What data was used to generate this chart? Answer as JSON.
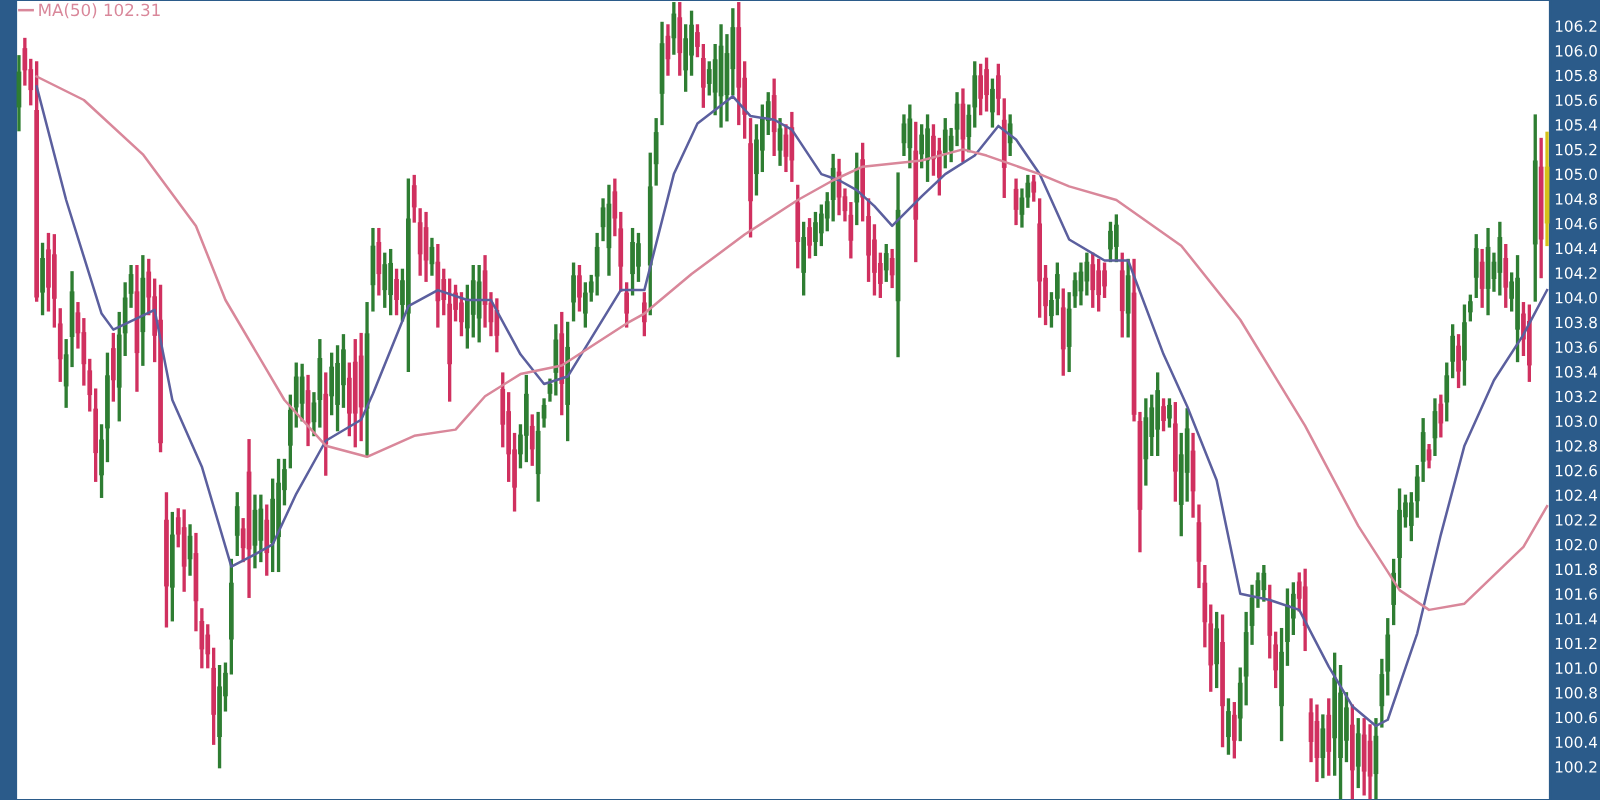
{
  "chart_data": {
    "type": "candlestick",
    "categories": [
      null,
      null,
      null,
      null,
      null,
      null,
      null,
      null,
      null,
      null,
      null,
      null,
      null,
      null,
      null,
      null,
      null,
      null,
      null,
      null,
      null,
      null,
      null,
      null,
      null,
      null,
      null,
      null,
      null,
      null,
      null,
      null,
      null,
      null,
      null,
      null,
      null,
      null,
      null,
      null,
      null,
      null,
      null,
      null,
      null,
      null,
      null,
      null,
      null,
      null,
      null,
      null,
      null,
      null,
      null,
      null,
      null,
      null,
      null,
      null,
      null,
      null,
      null,
      null,
      null,
      null,
      null,
      null,
      null,
      null,
      null,
      null,
      null,
      null,
      null,
      null,
      null,
      null,
      null,
      null,
      null,
      null,
      null,
      null,
      null,
      null,
      null,
      null,
      null,
      null,
      null,
      null,
      null,
      null,
      null,
      null,
      null,
      null,
      null,
      null,
      null,
      null,
      null,
      null,
      null,
      null,
      null,
      null,
      null,
      null,
      null,
      null,
      null,
      null,
      null,
      null,
      null,
      null,
      null,
      null,
      null,
      null,
      null,
      null,
      null,
      null,
      null,
      null,
      null,
      null,
      null,
      null,
      null,
      null,
      null,
      null,
      null,
      null,
      null,
      null,
      null,
      null,
      null,
      null,
      null,
      null,
      null,
      null,
      null,
      null,
      null,
      null,
      null,
      null,
      null,
      null,
      null,
      null,
      null,
      null,
      null,
      null,
      null,
      null,
      null,
      null,
      null,
      null,
      null,
      null,
      null,
      null,
      null,
      null,
      null,
      null,
      null,
      null,
      null,
      null,
      null,
      null,
      null,
      null,
      null,
      null,
      null,
      null,
      null,
      null,
      null,
      null,
      null,
      null,
      null,
      null,
      null,
      null,
      null,
      null,
      null,
      null,
      null,
      null,
      null,
      null,
      null,
      null,
      null,
      null,
      null,
      null,
      null,
      null,
      null,
      null,
      null,
      null,
      null,
      null,
      null,
      null,
      null,
      null,
      null,
      null,
      null,
      null,
      null,
      null,
      null,
      null,
      null,
      null,
      null,
      null,
      null,
      null,
      null,
      null,
      null,
      null,
      null,
      null,
      null,
      null,
      null,
      null,
      null,
      null,
      null,
      null,
      null,
      null,
      null,
      null,
      null,
      null,
      null,
      null
    ],
    "ohlc": [
      [
        105.54,
        105.95,
        105.36,
        105.83
      ],
      [
        106.02,
        106.09,
        105.73,
        105.84
      ],
      [
        105.85,
        105.92,
        105.57,
        105.68
      ],
      [
        105.52,
        105.9,
        103.98,
        104.0
      ],
      [
        104.04,
        104.43,
        103.87,
        104.32
      ],
      [
        104.39,
        104.51,
        103.9,
        104.08
      ],
      [
        104.35,
        104.5,
        103.77,
        103.99
      ],
      [
        103.79,
        103.9,
        103.33,
        103.5
      ],
      [
        103.28,
        103.65,
        103.12,
        103.54
      ],
      [
        103.68,
        104.2,
        103.45,
        104.05
      ],
      [
        103.88,
        103.95,
        103.6,
        103.71
      ],
      [
        103.72,
        103.82,
        103.3,
        103.46
      ],
      [
        103.41,
        103.49,
        103.09,
        103.21
      ],
      [
        103.1,
        103.25,
        102.52,
        102.74
      ],
      [
        102.56,
        102.96,
        102.39,
        102.85
      ],
      [
        102.94,
        103.54,
        102.68,
        103.37
      ],
      [
        103.59,
        103.7,
        103.17,
        103.33
      ],
      [
        103.27,
        103.87,
        103.01,
        103.7
      ],
      [
        103.71,
        104.11,
        103.54,
        104.0
      ],
      [
        104.03,
        104.25,
        103.93,
        104.19
      ],
      [
        104.05,
        104.25,
        103.25,
        103.55
      ],
      [
        103.72,
        104.33,
        103.46,
        104.16
      ],
      [
        104.21,
        104.3,
        103.87,
        104.0
      ],
      [
        104.01,
        104.14,
        103.49,
        103.69
      ],
      [
        103.82,
        104.09,
        102.76,
        102.82
      ],
      [
        102.2,
        102.41,
        101.34,
        101.66
      ],
      [
        101.65,
        102.25,
        101.39,
        102.08
      ],
      [
        102.22,
        102.28,
        101.99,
        102.08
      ],
      [
        102.14,
        102.27,
        101.63,
        101.82
      ],
      [
        101.88,
        102.15,
        101.76,
        102.07
      ],
      [
        101.93,
        102.08,
        101.31,
        101.54
      ],
      [
        101.38,
        101.47,
        101.01,
        101.15
      ],
      [
        101.27,
        101.34,
        101.01,
        101.11
      ],
      [
        101.0,
        101.15,
        100.39,
        100.62
      ],
      [
        100.44,
        101.01,
        100.2,
        100.85
      ],
      [
        100.77,
        101.03,
        100.66,
        100.96
      ],
      [
        101.23,
        101.87,
        100.96,
        101.69
      ],
      [
        102.07,
        102.41,
        101.92,
        102.31
      ],
      [
        102.13,
        102.2,
        101.87,
        101.97
      ],
      [
        102.59,
        102.84,
        101.58,
        101.96
      ],
      [
        101.99,
        102.39,
        101.82,
        102.28
      ],
      [
        102.03,
        102.39,
        101.87,
        102.29
      ],
      [
        102.2,
        102.31,
        101.76,
        101.93
      ],
      [
        102.01,
        102.52,
        101.79,
        102.37
      ],
      [
        102.06,
        102.68,
        101.79,
        102.5
      ],
      [
        102.44,
        102.68,
        102.33,
        102.61
      ],
      [
        102.8,
        103.2,
        102.63,
        103.09
      ],
      [
        103.11,
        103.46,
        102.96,
        103.36
      ],
      [
        103.14,
        103.45,
        103.01,
        103.36
      ],
      [
        103.25,
        103.36,
        102.81,
        102.98
      ],
      [
        102.99,
        103.22,
        102.89,
        103.15
      ],
      [
        103.17,
        103.65,
        102.96,
        103.51
      ],
      [
        103.22,
        103.38,
        102.57,
        102.81
      ],
      [
        103.2,
        103.54,
        103.06,
        103.44
      ],
      [
        103.13,
        103.6,
        102.93,
        103.47
      ],
      [
        103.29,
        103.69,
        103.12,
        103.58
      ],
      [
        103.35,
        103.46,
        102.89,
        103.06
      ],
      [
        103.48,
        103.65,
        102.8,
        103.06
      ],
      [
        103.53,
        103.7,
        102.85,
        103.11
      ],
      [
        103.1,
        103.95,
        102.73,
        103.71
      ],
      [
        104.1,
        104.55,
        103.9,
        104.42
      ],
      [
        104.45,
        104.55,
        104.03,
        104.19
      ],
      [
        104.06,
        104.35,
        103.93,
        104.27
      ],
      [
        104.02,
        104.38,
        103.87,
        104.28
      ],
      [
        104.15,
        104.22,
        103.87,
        103.98
      ],
      [
        103.94,
        104.22,
        103.82,
        104.14
      ],
      [
        103.87,
        104.95,
        103.41,
        104.64
      ],
      [
        104.91,
        104.98,
        104.62,
        104.73
      ],
      [
        104.61,
        104.71,
        104.19,
        104.35
      ],
      [
        104.57,
        104.68,
        104.14,
        104.3
      ],
      [
        104.27,
        104.47,
        104.19,
        104.41
      ],
      [
        104.29,
        104.42,
        103.77,
        103.97
      ],
      [
        104.15,
        104.22,
        103.87,
        103.98
      ],
      [
        103.95,
        104.14,
        103.17,
        103.46
      ],
      [
        104.04,
        104.09,
        103.82,
        103.9
      ],
      [
        103.96,
        104.03,
        103.7,
        103.8
      ],
      [
        103.75,
        104.09,
        103.6,
        103.99
      ],
      [
        103.86,
        104.25,
        103.69,
        104.14
      ],
      [
        103.83,
        104.25,
        103.65,
        104.13
      ],
      [
        104.22,
        104.33,
        103.77,
        103.94
      ],
      [
        103.96,
        104.03,
        103.7,
        103.8
      ],
      [
        103.9,
        103.98,
        103.57,
        103.69
      ],
      [
        103.26,
        103.38,
        102.8,
        102.97
      ],
      [
        103.08,
        103.22,
        102.52,
        102.73
      ],
      [
        102.77,
        102.89,
        102.28,
        102.46
      ],
      [
        102.73,
        102.96,
        102.63,
        102.89
      ],
      [
        102.88,
        103.36,
        102.68,
        103.22
      ],
      [
        102.96,
        103.04,
        102.65,
        102.77
      ],
      [
        102.57,
        103.06,
        102.36,
        102.92
      ],
      [
        103.02,
        103.17,
        102.96,
        103.13
      ],
      [
        103.22,
        103.33,
        103.17,
        103.3
      ],
      [
        103.39,
        103.77,
        103.22,
        103.66
      ],
      [
        103.71,
        103.87,
        103.06,
        103.3
      ],
      [
        103.13,
        103.79,
        102.85,
        103.6
      ],
      [
        103.96,
        104.27,
        103.82,
        104.18
      ],
      [
        104.18,
        104.25,
        103.9,
        104.0
      ],
      [
        103.87,
        104.11,
        103.77,
        104.04
      ],
      [
        104.04,
        104.17,
        103.98,
        104.13
      ],
      [
        104.17,
        104.51,
        104.03,
        104.41
      ],
      [
        104.57,
        104.79,
        104.47,
        104.73
      ],
      [
        104.4,
        104.9,
        104.19,
        104.76
      ],
      [
        104.86,
        104.95,
        104.51,
        104.64
      ],
      [
        104.56,
        104.68,
        104.06,
        104.25
      ],
      [
        104.04,
        104.11,
        103.77,
        103.87
      ],
      [
        104.19,
        104.55,
        104.03,
        104.45
      ],
      [
        104.25,
        104.51,
        104.14,
        104.44
      ],
      [
        103.96,
        104.03,
        103.7,
        103.8
      ],
      [
        104.26,
        105.16,
        103.87,
        104.9
      ],
      [
        105.08,
        105.44,
        104.92,
        105.34
      ],
      [
        105.65,
        106.22,
        105.41,
        106.06
      ],
      [
        106.12,
        106.2,
        105.81,
        105.93
      ],
      [
        106.1,
        106.38,
        105.98,
        106.3
      ],
      [
        106.27,
        106.38,
        105.81,
        105.98
      ],
      [
        105.84,
        106.2,
        105.68,
        106.1
      ],
      [
        105.96,
        106.31,
        105.81,
        106.21
      ],
      [
        106.15,
        106.2,
        105.96,
        106.03
      ],
      [
        105.94,
        106.04,
        105.55,
        105.7
      ],
      [
        105.73,
        105.9,
        105.65,
        105.85
      ],
      [
        105.66,
        106.04,
        105.49,
        105.93
      ],
      [
        105.63,
        106.2,
        105.39,
        106.04
      ],
      [
        105.64,
        106.12,
        105.44,
        105.98
      ],
      [
        105.85,
        106.33,
        105.65,
        106.19
      ],
      [
        106.19,
        106.38,
        105.41,
        105.7
      ],
      [
        105.78,
        105.9,
        105.3,
        105.48
      ],
      [
        105.25,
        105.44,
        104.5,
        104.78
      ],
      [
        105.0,
        105.39,
        104.84,
        105.28
      ],
      [
        105.19,
        105.55,
        105.03,
        105.45
      ],
      [
        105.43,
        105.65,
        105.33,
        105.59
      ],
      [
        105.64,
        105.76,
        105.16,
        105.34
      ],
      [
        105.19,
        105.44,
        105.08,
        105.37
      ],
      [
        105.32,
        105.39,
        105.03,
        105.14
      ],
      [
        105.38,
        105.49,
        104.95,
        105.11
      ],
      [
        104.77,
        104.9,
        104.25,
        104.45
      ],
      [
        104.2,
        104.6,
        104.03,
        104.49
      ],
      [
        104.57,
        104.63,
        104.33,
        104.42
      ],
      [
        104.45,
        104.68,
        104.35,
        104.61
      ],
      [
        104.52,
        104.74,
        104.43,
        104.68
      ],
      [
        104.64,
        104.84,
        104.55,
        104.78
      ],
      [
        104.79,
        105.15,
        104.63,
        105.05
      ],
      [
        105.02,
        105.11,
        104.68,
        104.81
      ],
      [
        104.82,
        104.87,
        104.63,
        104.7
      ],
      [
        104.67,
        104.76,
        104.33,
        104.46
      ],
      [
        104.77,
        105.16,
        104.6,
        105.05
      ],
      [
        105.12,
        105.24,
        104.63,
        104.81
      ],
      [
        104.66,
        104.79,
        104.14,
        104.34
      ],
      [
        104.47,
        104.58,
        104.03,
        104.2
      ],
      [
        104.28,
        104.35,
        104.01,
        104.11
      ],
      [
        104.22,
        104.42,
        104.14,
        104.36
      ],
      [
        104.32,
        104.38,
        104.09,
        104.18
      ],
      [
        103.97,
        105.0,
        103.53,
        104.71
      ],
      [
        105.25,
        105.47,
        105.16,
        105.41
      ],
      [
        105.21,
        105.55,
        105.06,
        105.45
      ],
      [
        105.19,
        105.41,
        104.3,
        104.63
      ],
      [
        105.16,
        105.39,
        105.06,
        105.32
      ],
      [
        105.11,
        105.47,
        104.95,
        105.37
      ],
      [
        105.31,
        105.39,
        105.0,
        105.12
      ],
      [
        105.19,
        105.28,
        104.84,
        104.97
      ],
      [
        105.17,
        105.44,
        105.06,
        105.36
      ],
      [
        105.19,
        105.36,
        105.11,
        105.31
      ],
      [
        105.36,
        105.65,
        105.24,
        105.57
      ],
      [
        105.57,
        105.68,
        105.11,
        105.28
      ],
      [
        105.3,
        105.55,
        105.19,
        105.48
      ],
      [
        105.54,
        105.9,
        105.39,
        105.8
      ],
      [
        105.8,
        105.88,
        105.49,
        105.61
      ],
      [
        105.85,
        105.93,
        105.52,
        105.64
      ],
      [
        105.5,
        105.76,
        105.39,
        105.69
      ],
      [
        105.8,
        105.88,
        105.49,
        105.61
      ],
      [
        105.44,
        105.6,
        104.82,
        105.05
      ],
      [
        105.25,
        105.47,
        105.16,
        105.41
      ],
      [
        104.88,
        104.95,
        104.6,
        104.71
      ],
      [
        104.67,
        104.87,
        104.58,
        104.81
      ],
      [
        104.81,
        104.98,
        104.74,
        104.93
      ],
      [
        104.94,
        104.98,
        104.79,
        104.85
      ],
      [
        104.6,
        104.79,
        103.85,
        104.13
      ],
      [
        104.16,
        104.25,
        103.79,
        103.93
      ],
      [
        103.85,
        104.03,
        103.77,
        103.98
      ],
      [
        103.99,
        104.27,
        103.87,
        104.19
      ],
      [
        103.92,
        104.06,
        103.38,
        103.58
      ],
      [
        103.6,
        104.03,
        103.41,
        103.91
      ],
      [
        104.01,
        104.19,
        103.93,
        104.14
      ],
      [
        104.05,
        104.27,
        103.95,
        104.21
      ],
      [
        104.13,
        104.35,
        104.03,
        104.29
      ],
      [
        104.27,
        104.35,
        103.93,
        104.06
      ],
      [
        104.22,
        104.3,
        103.9,
        104.02
      ],
      [
        104.22,
        104.27,
        104.01,
        104.09
      ],
      [
        104.39,
        104.6,
        104.3,
        104.54
      ],
      [
        104.41,
        104.66,
        104.3,
        104.59
      ],
      [
        104.22,
        104.35,
        103.69,
        103.89
      ],
      [
        103.87,
        104.3,
        103.69,
        104.18
      ],
      [
        104.04,
        104.3,
        103.01,
        103.05
      ],
      [
        103.0,
        103.06,
        101.95,
        102.28
      ],
      [
        102.69,
        103.17,
        102.49,
        103.03
      ],
      [
        102.87,
        103.2,
        102.73,
        103.11
      ],
      [
        102.93,
        103.38,
        102.73,
        103.25
      ],
      [
        103.12,
        103.17,
        102.93,
        103.0
      ],
      [
        103.02,
        103.17,
        102.96,
        103.13
      ],
      [
        102.98,
        103.14,
        102.36,
        102.59
      ],
      [
        102.32,
        102.89,
        102.08,
        102.73
      ],
      [
        102.58,
        103.09,
        102.36,
        102.94
      ],
      [
        102.76,
        102.89,
        102.23,
        102.43
      ],
      [
        102.18,
        102.31,
        101.66,
        101.86
      ],
      [
        101.69,
        101.82,
        101.18,
        101.37
      ],
      [
        101.36,
        101.5,
        100.82,
        101.02
      ],
      [
        101.03,
        101.44,
        100.85,
        101.32
      ],
      [
        101.21,
        101.42,
        100.37,
        100.69
      ],
      [
        100.44,
        100.74,
        100.31,
        100.65
      ],
      [
        100.62,
        100.71,
        100.28,
        100.41
      ],
      [
        100.59,
        100.99,
        100.42,
        100.88
      ],
      [
        100.93,
        101.44,
        100.71,
        101.29
      ],
      [
        101.34,
        101.66,
        101.2,
        101.57
      ],
      [
        101.58,
        101.76,
        101.5,
        101.71
      ],
      [
        101.63,
        101.82,
        101.55,
        101.77
      ],
      [
        101.55,
        101.66,
        101.09,
        101.26
      ],
      [
        101.19,
        101.28,
        100.85,
        100.98
      ],
      [
        100.69,
        101.31,
        100.42,
        101.13
      ],
      [
        101.21,
        101.63,
        101.03,
        101.51
      ],
      [
        101.4,
        101.68,
        101.28,
        101.6
      ],
      [
        101.7,
        101.76,
        101.47,
        101.56
      ],
      [
        101.66,
        101.79,
        101.15,
        101.34
      ],
      [
        100.64,
        100.74,
        100.25,
        100.4
      ],
      [
        100.57,
        100.69,
        100.09,
        100.27
      ],
      [
        100.27,
        100.61,
        100.12,
        100.51
      ],
      [
        100.62,
        100.74,
        100.14,
        100.32
      ],
      [
        100.43,
        101.11,
        100.14,
        100.92
      ],
      [
        100.27,
        101.01,
        99.95,
        100.8
      ],
      [
        100.41,
        100.79,
        100.25,
        100.68
      ],
      [
        100.54,
        100.69,
        99.95,
        100.17
      ],
      [
        100.2,
        100.58,
        100.04,
        100.47
      ],
      [
        100.46,
        100.58,
        99.98,
        100.16
      ],
      [
        100.41,
        100.53,
        99.95,
        100.12
      ],
      [
        100.14,
        100.58,
        99.95,
        100.45
      ],
      [
        100.69,
        101.06,
        100.53,
        100.95
      ],
      [
        100.97,
        101.39,
        100.79,
        101.27
      ],
      [
        101.51,
        101.87,
        101.36,
        101.77
      ],
      [
        101.89,
        102.44,
        101.66,
        102.28
      ],
      [
        102.22,
        102.39,
        102.15,
        102.34
      ],
      [
        102.15,
        102.41,
        102.04,
        102.34
      ],
      [
        102.35,
        102.63,
        102.23,
        102.55
      ],
      [
        102.67,
        103.01,
        102.52,
        102.91
      ],
      [
        102.77,
        102.8,
        102.63,
        102.68
      ],
      [
        102.86,
        103.17,
        102.73,
        103.08
      ],
      [
        103.14,
        103.2,
        102.88,
        102.98
      ],
      [
        103.15,
        103.46,
        103.01,
        103.37
      ],
      [
        103.48,
        103.77,
        103.36,
        103.69
      ],
      [
        103.61,
        103.69,
        103.28,
        103.4
      ],
      [
        103.49,
        103.93,
        103.3,
        103.8
      ],
      [
        103.88,
        104.01,
        103.82,
        103.97
      ],
      [
        104.16,
        104.5,
        104.01,
        104.4
      ],
      [
        104.29,
        104.38,
        103.93,
        104.07
      ],
      [
        104.07,
        104.55,
        103.87,
        104.41
      ],
      [
        104.15,
        104.35,
        104.06,
        104.29
      ],
      [
        104.2,
        104.6,
        104.03,
        104.49
      ],
      [
        104.32,
        104.42,
        103.93,
        104.08
      ],
      [
        103.99,
        104.19,
        103.9,
        104.13
      ],
      [
        103.74,
        104.33,
        103.49,
        104.16
      ],
      [
        103.87,
        103.95,
        103.54,
        103.66
      ],
      [
        103.81,
        103.93,
        103.33,
        103.45
      ],
      [
        104.43,
        105.47,
        103.98,
        105.11
      ],
      [
        105.06,
        105.28,
        104.17,
        104.47
      ],
      [
        104.6,
        105.33,
        104.43,
        105.06
      ]
    ],
    "colors": [
      "#2e7d32",
      "#d0305f",
      "#d0305f",
      "#d0305f",
      "#2e7d32",
      "#d0305f",
      "#d0305f",
      "#d0305f",
      "#2e7d32",
      "#2e7d32",
      "#d0305f",
      "#d0305f",
      "#d0305f",
      "#d0305f",
      "#2e7d32",
      "#2e7d32",
      "#d0305f",
      "#2e7d32",
      "#2e7d32",
      "#2e7d32",
      "#d0305f",
      "#2e7d32",
      "#d0305f",
      "#d0305f",
      "#d0305f",
      "#d0305f",
      "#2e7d32",
      "#d0305f",
      "#d0305f",
      "#2e7d32",
      "#d0305f",
      "#d0305f",
      "#d0305f",
      "#d0305f",
      "#2e7d32",
      "#2e7d32",
      "#2e7d32",
      "#2e7d32",
      "#d0305f",
      "#d0305f",
      "#2e7d32",
      "#2e7d32",
      "#d0305f",
      "#2e7d32",
      "#2e7d32",
      "#2e7d32",
      "#2e7d32",
      "#2e7d32",
      "#2e7d32",
      "#d0305f",
      "#2e7d32",
      "#2e7d32",
      "#d0305f",
      "#2e7d32",
      "#2e7d32",
      "#2e7d32",
      "#d0305f",
      "#d0305f",
      "#d0305f",
      "#2e7d32",
      "#2e7d32",
      "#d0305f",
      "#2e7d32",
      "#2e7d32",
      "#d0305f",
      "#2e7d32",
      "#2e7d32",
      "#d0305f",
      "#d0305f",
      "#d0305f",
      "#2e7d32",
      "#d0305f",
      "#d0305f",
      "#d0305f",
      "#d0305f",
      "#d0305f",
      "#2e7d32",
      "#2e7d32",
      "#2e7d32",
      "#d0305f",
      "#d0305f",
      "#d0305f",
      "#d0305f",
      "#d0305f",
      "#d0305f",
      "#2e7d32",
      "#2e7d32",
      "#d0305f",
      "#2e7d32",
      "#2e7d32",
      "#2e7d32",
      "#2e7d32",
      "#d0305f",
      "#2e7d32",
      "#2e7d32",
      "#d0305f",
      "#2e7d32",
      "#2e7d32",
      "#2e7d32",
      "#2e7d32",
      "#2e7d32",
      "#d0305f",
      "#d0305f",
      "#d0305f",
      "#2e7d32",
      "#2e7d32",
      "#d0305f",
      "#2e7d32",
      "#2e7d32",
      "#2e7d32",
      "#d0305f",
      "#2e7d32",
      "#d0305f",
      "#2e7d32",
      "#2e7d32",
      "#d0305f",
      "#d0305f",
      "#2e7d32",
      "#2e7d32",
      "#2e7d32",
      "#2e7d32",
      "#2e7d32",
      "#d0305f",
      "#d0305f",
      "#d0305f",
      "#2e7d32",
      "#2e7d32",
      "#2e7d32",
      "#d0305f",
      "#2e7d32",
      "#d0305f",
      "#d0305f",
      "#d0305f",
      "#2e7d32",
      "#d0305f",
      "#2e7d32",
      "#2e7d32",
      "#2e7d32",
      "#2e7d32",
      "#d0305f",
      "#d0305f",
      "#d0305f",
      "#2e7d32",
      "#d0305f",
      "#d0305f",
      "#d0305f",
      "#d0305f",
      "#2e7d32",
      "#d0305f",
      "#2e7d32",
      "#2e7d32",
      "#2e7d32",
      "#d0305f",
      "#2e7d32",
      "#2e7d32",
      "#d0305f",
      "#d0305f",
      "#2e7d32",
      "#2e7d32",
      "#2e7d32",
      "#d0305f",
      "#2e7d32",
      "#2e7d32",
      "#d0305f",
      "#d0305f",
      "#2e7d32",
      "#d0305f",
      "#d0305f",
      "#2e7d32",
      "#d0305f",
      "#2e7d32",
      "#2e7d32",
      "#d0305f",
      "#d0305f",
      "#d0305f",
      "#2e7d32",
      "#2e7d32",
      "#d0305f",
      "#2e7d32",
      "#2e7d32",
      "#2e7d32",
      "#2e7d32",
      "#d0305f",
      "#d0305f",
      "#d0305f",
      "#2e7d32",
      "#2e7d32",
      "#d0305f",
      "#2e7d32",
      "#d0305f",
      "#d0305f",
      "#2e7d32",
      "#2e7d32",
      "#2e7d32",
      "#d0305f",
      "#2e7d32",
      "#d0305f",
      "#2e7d32",
      "#2e7d32",
      "#d0305f",
      "#d0305f",
      "#d0305f",
      "#d0305f",
      "#2e7d32",
      "#d0305f",
      "#2e7d32",
      "#d0305f",
      "#2e7d32",
      "#2e7d32",
      "#2e7d32",
      "#2e7d32",
      "#2e7d32",
      "#d0305f",
      "#d0305f",
      "#2e7d32",
      "#2e7d32",
      "#2e7d32",
      "#d0305f",
      "#d0305f",
      "#d0305f",
      "#d0305f",
      "#2e7d32",
      "#d0305f",
      "#2e7d32",
      "#2e7d32",
      "#2e7d32",
      "#d0305f",
      "#2e7d32",
      "#d0305f",
      "#d0305f",
      "#2e7d32",
      "#2e7d32",
      "#2e7d32",
      "#2e7d32",
      "#2e7d32",
      "#2e7d32",
      "#2e7d32",
      "#2e7d32",
      "#2e7d32",
      "#d0305f",
      "#2e7d32",
      "#d0305f",
      "#2e7d32",
      "#2e7d32",
      "#d0305f",
      "#2e7d32",
      "#2e7d32",
      "#2e7d32",
      "#d0305f",
      "#2e7d32",
      "#2e7d32",
      "#2e7d32",
      "#d0305f",
      "#2e7d32",
      "#2e7d32",
      "#d0305f",
      "#d0305f",
      "#2e7d32",
      "#d0305f",
      "#d4c21a"
    ],
    "series": [
      {
        "type": "line",
        "color": "#5b5f9e",
        "values": [
          null,
          null,
          null,
          105.71,
          null,
          null,
          null,
          null,
          104.79,
          null,
          null,
          null,
          null,
          null,
          103.87,
          null,
          103.74,
          null,
          null,
          null,
          null,
          null,
          null,
          103.9,
          null,
          null,
          103.17,
          null,
          null,
          null,
          null,
          102.63,
          null,
          null,
          null,
          null,
          101.82,
          null,
          null,
          null,
          101.92,
          null,
          null,
          102.0,
          null,
          null,
          null,
          102.41,
          null,
          null,
          null,
          null,
          102.84,
          null,
          null,
          null,
          null,
          null,
          103.01,
          null,
          103.22,
          null,
          null,
          null,
          null,
          null,
          103.93,
          null,
          null,
          null,
          null,
          104.06,
          null,
          null,
          null,
          null,
          103.98,
          null,
          null,
          null,
          103.98,
          null,
          null,
          null,
          null,
          103.54,
          null,
          null,
          null,
          103.3,
          null,
          null,
          null,
          103.36,
          null,
          null,
          null,
          null,
          null,
          null,
          null,
          null,
          104.06,
          null,
          null,
          null,
          104.06,
          null,
          null,
          null,
          null,
          105.0,
          null,
          null,
          null,
          105.41,
          null,
          null,
          null,
          null,
          null,
          105.63,
          null,
          null,
          105.47,
          null,
          null,
          null,
          105.44,
          null,
          null,
          105.36,
          null,
          null,
          null,
          null,
          105.0,
          null,
          null,
          104.95,
          null,
          null,
          104.87,
          null,
          null,
          104.74,
          null,
          null,
          104.58,
          null,
          null,
          null,
          null,
          104.82,
          null,
          null,
          null,
          105.0,
          null,
          null,
          null,
          null,
          105.15,
          null,
          null,
          null,
          105.39,
          null,
          null,
          105.28,
          null,
          null,
          null,
          105.0,
          null,
          null,
          null,
          null,
          104.47,
          null,
          null,
          null,
          null,
          null,
          104.3,
          null,
          null,
          null,
          104.3,
          null,
          null,
          null,
          null,
          null,
          103.54,
          null,
          null,
          null,
          103.12,
          null,
          null,
          null,
          null,
          102.52,
          null,
          null,
          null,
          101.6,
          null,
          null,
          null,
          null,
          101.55,
          null,
          null,
          null,
          null,
          101.47,
          null,
          null,
          null,
          null,
          101.01,
          null,
          null,
          null,
          100.69,
          null,
          null,
          null,
          100.53,
          null,
          100.58,
          null,
          null,
          null,
          null,
          101.28,
          null,
          null,
          null,
          102.08,
          null,
          null,
          null,
          102.8,
          null,
          null,
          null,
          null,
          103.33,
          null,
          null,
          null,
          null,
          103.7,
          null,
          null,
          null,
          104.06
        ]
      },
      {
        "type": "line",
        "name": "MA(50) 102.31",
        "color": "#d9879a",
        "values": [
          null,
          null,
          null,
          105.79,
          null,
          null,
          null,
          null,
          null,
          null,
          null,
          105.6,
          null,
          null,
          null,
          null,
          null,
          null,
          null,
          null,
          null,
          105.16,
          null,
          null,
          null,
          null,
          null,
          null,
          null,
          null,
          104.58,
          null,
          null,
          null,
          null,
          103.98,
          null,
          null,
          null,
          null,
          null,
          null,
          null,
          null,
          null,
          103.17,
          null,
          null,
          null,
          null,
          null,
          null,
          102.8,
          null,
          null,
          null,
          null,
          null,
          null,
          102.71,
          null,
          null,
          null,
          null,
          null,
          null,
          null,
          102.88,
          null,
          null,
          null,
          null,
          null,
          null,
          102.93,
          null,
          null,
          null,
          null,
          103.2,
          null,
          null,
          null,
          null,
          null,
          103.38,
          null,
          null,
          null,
          null,
          null,
          null,
          103.45,
          null,
          null,
          null,
          null,
          null,
          null,
          null,
          null,
          null,
          null,
          103.79,
          null,
          null,
          103.87,
          null,
          null,
          null,
          null,
          null,
          null,
          null,
          104.19,
          null,
          null,
          null,
          null,
          null,
          null,
          null,
          null,
          104.51,
          null,
          null,
          null,
          null,
          null,
          null,
          null,
          null,
          104.79,
          null,
          null,
          null,
          null,
          null,
          104.95,
          null,
          null,
          null,
          null,
          105.06,
          null,
          null,
          null,
          null,
          null,
          null,
          null,
          null,
          null,
          105.11,
          null,
          null,
          null,
          null,
          null,
          null,
          105.2,
          null,
          null,
          null,
          105.15,
          null,
          null,
          null,
          null,
          null,
          null,
          null,
          null,
          105.0,
          null,
          null,
          null,
          null,
          104.9,
          null,
          null,
          null,
          null,
          null,
          null,
          null,
          104.79,
          null,
          null,
          null,
          null,
          null,
          null,
          null,
          null,
          null,
          null,
          104.42,
          null,
          null,
          null,
          null,
          null,
          null,
          null,
          null,
          null,
          103.82,
          null,
          null,
          null,
          null,
          null,
          null,
          null,
          null,
          null,
          null,
          102.96,
          null,
          null,
          null,
          null,
          null,
          null,
          null,
          null,
          102.15,
          null,
          null,
          null,
          null,
          null,
          null,
          101.63,
          null,
          null,
          null,
          null,
          101.47,
          null,
          null,
          null,
          null,
          null,
          101.52,
          null,
          null,
          null,
          null,
          null,
          null,
          null,
          null,
          null,
          101.98,
          null,
          null,
          null,
          102.31
        ]
      }
    ],
    "ylim": [
      99.93,
      106.41
    ],
    "yticks": [
      100.2,
      100.4,
      100.6,
      100.8,
      {
        "value": 101,
        "label": "101.0"
      },
      101.2,
      101.4,
      101.6,
      101.8,
      {
        "value": 102,
        "label": "102.0"
      },
      102.2,
      102.4,
      102.6,
      102.8,
      {
        "value": 103,
        "label": "103.0"
      },
      103.2,
      103.4,
      103.6,
      103.8,
      {
        "value": 104,
        "label": "104.0"
      },
      104.2,
      104.4,
      104.6,
      104.8,
      {
        "value": 105,
        "label": "105.0"
      },
      105.2,
      105.4,
      105.6,
      105.8,
      {
        "value": 106,
        "label": "106.0"
      },
      106.2
    ],
    "tick_labels": "y",
    "legend": "top left"
  }
}
